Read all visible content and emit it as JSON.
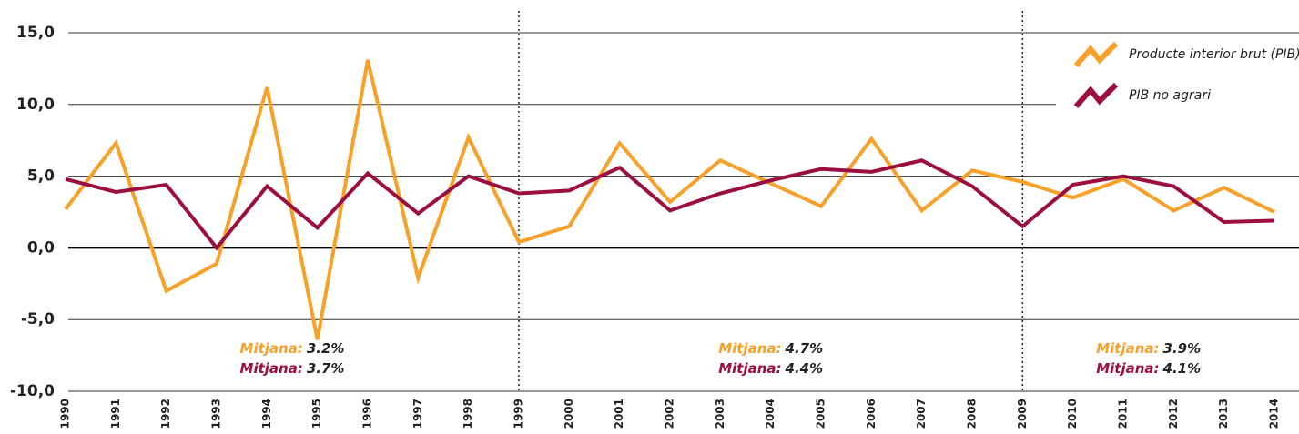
{
  "chart_data": {
    "type": "line",
    "x": [
      1990,
      1991,
      1992,
      1993,
      1994,
      1995,
      1996,
      1997,
      1998,
      1999,
      2000,
      2001,
      2002,
      2003,
      2004,
      2005,
      2006,
      2007,
      2008,
      2009,
      2010,
      2011,
      2012,
      2013,
      2014
    ],
    "series": [
      {
        "name": "Producte interior brut (PIB)",
        "color": "#f7a12a",
        "values": [
          2.7,
          7.3,
          -3.0,
          -1.1,
          11.2,
          -6.4,
          13.1,
          -2.1,
          7.7,
          0.4,
          1.5,
          7.3,
          3.2,
          6.1,
          4.5,
          2.9,
          7.6,
          2.6,
          5.4,
          4.6,
          3.5,
          4.8,
          2.6,
          4.2,
          2.5
        ]
      },
      {
        "name": "PIB no agrari",
        "color": "#9b0e3f",
        "values": [
          4.8,
          3.9,
          4.4,
          0.0,
          4.3,
          1.4,
          5.2,
          2.4,
          5.0,
          3.8,
          4.0,
          5.6,
          2.6,
          3.8,
          4.7,
          5.5,
          5.3,
          6.1,
          4.3,
          1.5,
          4.4,
          5.0,
          4.3,
          1.8,
          1.9
        ]
      }
    ],
    "ylim": [
      -10,
      15
    ],
    "yticks": [
      {
        "value": -10,
        "label": "-10,0"
      },
      {
        "value": -5,
        "label": "-5,0"
      },
      {
        "value": 0,
        "label": "0,0"
      },
      {
        "value": 5,
        "label": "5,0"
      },
      {
        "value": 10,
        "label": "10,0"
      },
      {
        "value": 15,
        "label": "15,0"
      }
    ],
    "grid": true,
    "dividers": [
      1999,
      2009
    ],
    "legend": "top-right",
    "annotation_label": "Mitjana:",
    "averages": [
      {
        "values": [
          3.2,
          3.7
        ],
        "value_labels": [
          "3.2%",
          "3.7%"
        ]
      },
      {
        "values": [
          4.7,
          4.4
        ],
        "value_labels": [
          "4.7%",
          "4.4%"
        ]
      },
      {
        "values": [
          3.9,
          4.1
        ],
        "value_labels": [
          "3.9%",
          "4.1%"
        ]
      }
    ]
  }
}
